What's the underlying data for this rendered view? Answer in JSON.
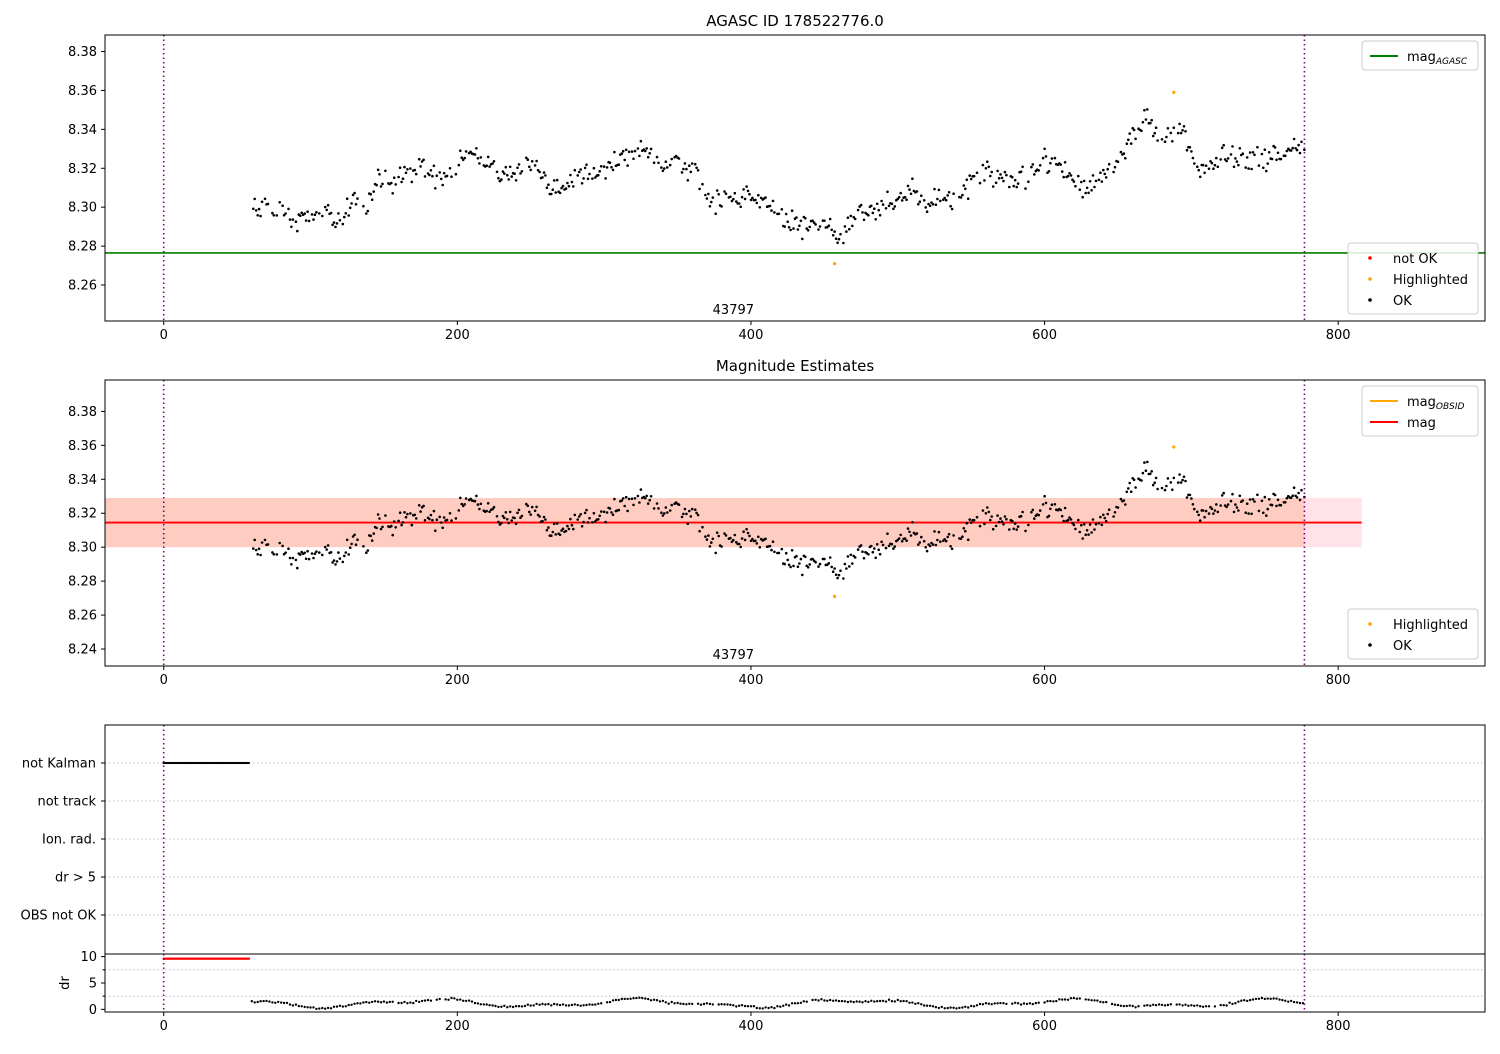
{
  "colors": {
    "ok": "#000000",
    "highlighted": "#ffa500",
    "not_ok": "#ff0000",
    "mag_agasc": "#008000",
    "mag_obsid": "#ffa500",
    "mag": "#ff0000",
    "band_outer": "#ffc0cb",
    "band_inner": "#ffa07a",
    "vline": "#800080",
    "gridline": "#b0b0b0"
  },
  "chart_data": [
    {
      "id": "agasc",
      "type": "scatter",
      "title": "AGASC ID 178522776.0",
      "xlim": [
        -40,
        900
      ],
      "ylim": [
        8.2415,
        8.3885
      ],
      "xticks": [
        0,
        200,
        400,
        600,
        800
      ],
      "yticks": [
        8.26,
        8.28,
        8.3,
        8.32,
        8.34,
        8.36,
        8.38
      ],
      "annotation": {
        "text": "43797",
        "x": 388,
        "y": 8.245
      },
      "vlines": [
        0,
        777
      ],
      "hlines": [
        {
          "name": "mag$_{AGASC}$",
          "y": 8.2765
        }
      ],
      "highlighted": [
        {
          "x": 457,
          "y": 8.271
        },
        {
          "x": 688,
          "y": 8.359
        }
      ],
      "legends": [
        {
          "placement": "top-right",
          "entries": [
            {
              "label": "mag",
              "sub": "AGASC",
              "kind": "line",
              "color": "#008000"
            }
          ]
        },
        {
          "placement": "bottom-right",
          "entries": [
            {
              "label": "not OK",
              "kind": "dot",
              "color": "#ff0000"
            },
            {
              "label": "Highlighted",
              "kind": "dot",
              "color": "#ffa500"
            },
            {
              "label": "OK",
              "kind": "dot",
              "color": "#000000"
            }
          ]
        }
      ]
    },
    {
      "id": "magest",
      "type": "scatter",
      "title": "Magnitude Estimates",
      "xlim": [
        -40,
        900
      ],
      "ylim": [
        8.23,
        8.3985
      ],
      "xticks": [
        0,
        200,
        400,
        600,
        800
      ],
      "yticks": [
        8.24,
        8.26,
        8.28,
        8.3,
        8.32,
        8.34,
        8.36,
        8.38
      ],
      "annotation": {
        "text": "43797",
        "x": 388,
        "y": 8.234
      },
      "vlines": [
        0,
        777
      ],
      "hlines": [
        {
          "name": "mag",
          "y": 8.3145
        }
      ],
      "bands": [
        {
          "x": [
            -40,
            816
          ],
          "y": [
            8.3,
            8.329
          ],
          "kind": "outer"
        },
        {
          "x": [
            -40,
            777
          ],
          "y": [
            8.3,
            8.329
          ],
          "kind": "inner"
        }
      ],
      "highlighted": [
        {
          "x": 457,
          "y": 8.271
        },
        {
          "x": 688,
          "y": 8.359
        }
      ],
      "legends": [
        {
          "placement": "top-right",
          "entries": [
            {
              "label": "mag",
              "sub": "OBSID",
              "kind": "line",
              "color": "#ffa500"
            },
            {
              "label": "mag",
              "kind": "line",
              "color": "#ff0000"
            }
          ]
        },
        {
          "placement": "bottom-right",
          "entries": [
            {
              "label": "Highlighted",
              "kind": "dot",
              "color": "#ffa500"
            },
            {
              "label": "OK",
              "kind": "dot",
              "color": "#000000"
            }
          ]
        }
      ]
    },
    {
      "id": "flags",
      "type": "scatter",
      "xlim": [
        -40,
        900
      ],
      "categories": [
        "not Kalman",
        "not track",
        "Ion. rad.",
        "dr > 5",
        "OBS not OK"
      ],
      "flagged_ranges": [
        {
          "category": "not Kalman",
          "x": [
            0,
            58
          ]
        }
      ],
      "vlines": [
        0,
        777
      ]
    },
    {
      "id": "dr",
      "type": "scatter",
      "xlim": [
        -40,
        900
      ],
      "ylim": [
        -0.5,
        10.5
      ],
      "xticks": [
        0,
        200,
        400,
        600,
        800
      ],
      "yticks": [
        0,
        5,
        10
      ],
      "ylabel": "dr",
      "flagged_ranges": [
        {
          "x": [
            0,
            58
          ],
          "y": 9.6
        }
      ],
      "vlines": [
        0,
        777
      ]
    }
  ],
  "segments": [
    [
      60,
      8.299
    ],
    [
      68,
      8.302
    ],
    [
      76,
      8.298
    ],
    [
      84,
      8.294
    ],
    [
      92,
      8.293
    ],
    [
      100,
      8.297
    ],
    [
      110,
      8.296
    ],
    [
      120,
      8.291
    ],
    [
      130,
      8.304
    ],
    [
      138,
      8.298
    ],
    [
      146,
      8.316
    ],
    [
      156,
      8.313
    ],
    [
      166,
      8.317
    ],
    [
      178,
      8.321
    ],
    [
      188,
      8.315
    ],
    [
      198,
      8.318
    ],
    [
      208,
      8.33
    ],
    [
      218,
      8.324
    ],
    [
      228,
      8.317
    ],
    [
      238,
      8.318
    ],
    [
      248,
      8.325
    ],
    [
      256,
      8.32
    ],
    [
      264,
      8.308
    ],
    [
      274,
      8.312
    ],
    [
      284,
      8.317
    ],
    [
      294,
      8.316
    ],
    [
      304,
      8.322
    ],
    [
      314,
      8.327
    ],
    [
      326,
      8.328
    ],
    [
      336,
      8.322
    ],
    [
      346,
      8.325
    ],
    [
      356,
      8.32
    ],
    [
      364,
      8.316
    ],
    [
      372,
      8.301
    ],
    [
      382,
      8.305
    ],
    [
      392,
      8.304
    ],
    [
      402,
      8.308
    ],
    [
      412,
      8.302
    ],
    [
      422,
      8.294
    ],
    [
      432,
      8.289
    ],
    [
      442,
      8.291
    ],
    [
      452,
      8.294
    ],
    [
      462,
      8.283
    ],
    [
      470,
      8.296
    ],
    [
      480,
      8.297
    ],
    [
      490,
      8.301
    ],
    [
      500,
      8.304
    ],
    [
      510,
      8.309
    ],
    [
      520,
      8.3
    ],
    [
      530,
      8.305
    ],
    [
      540,
      8.302
    ],
    [
      550,
      8.313
    ],
    [
      560,
      8.318
    ],
    [
      570,
      8.315
    ],
    [
      580,
      8.313
    ],
    [
      590,
      8.316
    ],
    [
      600,
      8.324
    ],
    [
      610,
      8.323
    ],
    [
      620,
      8.312
    ],
    [
      630,
      8.311
    ],
    [
      640,
      8.316
    ],
    [
      650,
      8.322
    ],
    [
      660,
      8.338
    ],
    [
      668,
      8.345
    ],
    [
      676,
      8.339
    ],
    [
      686,
      8.338
    ],
    [
      694,
      8.341
    ],
    [
      702,
      8.322
    ],
    [
      712,
      8.32
    ],
    [
      722,
      8.328
    ],
    [
      732,
      8.324
    ],
    [
      742,
      8.327
    ],
    [
      752,
      8.326
    ],
    [
      762,
      8.326
    ],
    [
      770,
      8.33
    ],
    [
      777,
      8.331
    ]
  ]
}
